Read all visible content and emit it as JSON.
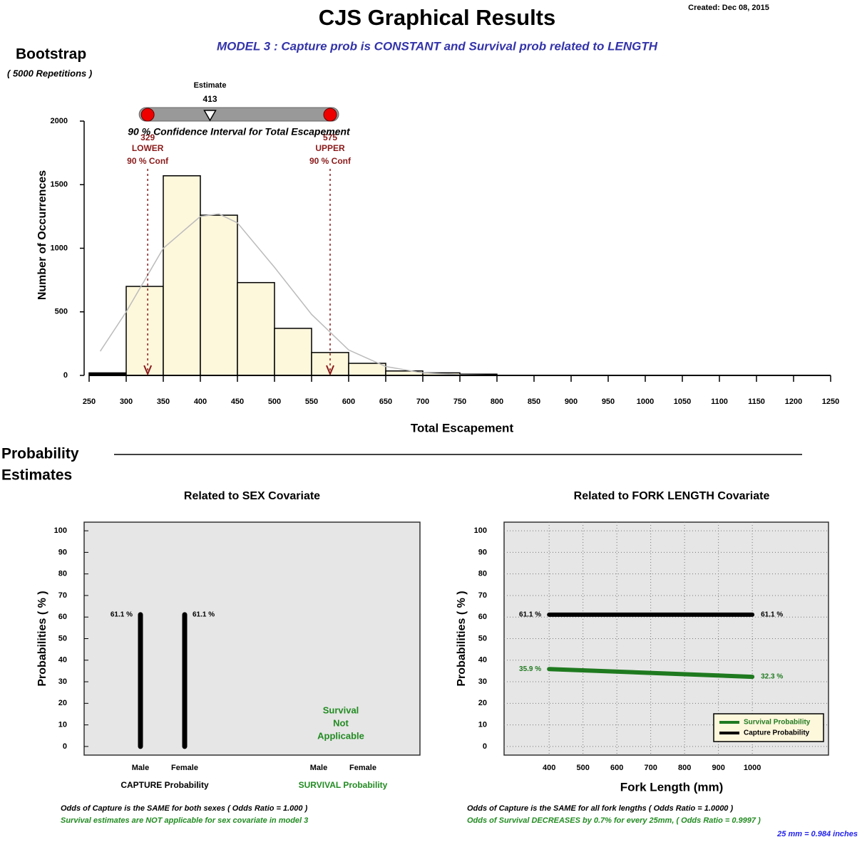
{
  "header": {
    "title": "CJS Graphical Results",
    "created": "Created:  Dec 08, 2015",
    "model": "MODEL  3 :  Capture prob is CONSTANT  and  Survival prob related to LENGTH"
  },
  "bootstrap": {
    "title": "Bootstrap",
    "repetitions": "( 5000  Repetitions )"
  },
  "section": {
    "line1": "Probability",
    "line2": "Estimates"
  },
  "chart_data": [
    {
      "type": "histogram",
      "xlabel": "Total Escapement",
      "ylabel": "Number of Occurrences",
      "bins": [
        250,
        300,
        350,
        400,
        450,
        500,
        550,
        600,
        650,
        700,
        750,
        800,
        850,
        900,
        950,
        1000,
        1050,
        1100,
        1150,
        1200,
        1250
      ],
      "counts": [
        20,
        700,
        1570,
        1260,
        730,
        370,
        180,
        95,
        35,
        20,
        10,
        0,
        0,
        0,
        0,
        0,
        0,
        0,
        0,
        0
      ],
      "color": "#fdf7dc",
      "fit_curve": {
        "x": [
          265,
          300,
          350,
          400,
          425,
          450,
          500,
          550,
          600,
          650,
          700,
          750,
          800,
          1250
        ],
        "values": [
          190,
          500,
          1000,
          1250,
          1270,
          1200,
          850,
          480,
          200,
          70,
          20,
          5,
          0,
          0
        ],
        "color": "#bbbbbb"
      },
      "xlim": [
        250,
        1250
      ],
      "xticks": [
        250,
        300,
        350,
        400,
        450,
        500,
        550,
        600,
        650,
        700,
        750,
        800,
        850,
        900,
        950,
        1000,
        1050,
        1100,
        1150,
        1200,
        1250
      ],
      "ylim": [
        0,
        2000
      ],
      "yticks": [
        0,
        500,
        1000,
        1500,
        2000
      ],
      "interval": {
        "caption": "90 % Confidence Interval for Total Escapement",
        "estimate_label": "Estimate",
        "estimate": 413,
        "lower": 329,
        "lower_label": "LOWER",
        "lower_conf": "90 % Conf",
        "upper": 575,
        "upper_label": "UPPER",
        "upper_conf": "90 % Conf",
        "color": "#8b1a1a"
      }
    },
    {
      "type": "bar",
      "title": "Related to SEX Covariate",
      "ylabel": "Probabilities ( % )",
      "ylim": [
        -4,
        104
      ],
      "yticks": [
        0,
        10,
        20,
        30,
        40,
        50,
        60,
        70,
        80,
        90,
        100
      ],
      "groups": [
        {
          "label": "CAPTURE Probability",
          "categories": [
            "Male",
            "Female"
          ],
          "values": [
            61.1,
            61.1
          ],
          "value_labels": [
            "61.1 %",
            "61.1 %"
          ],
          "color": "#000000"
        },
        {
          "label": "SURVIVAL Probability",
          "categories": [
            "Male",
            "Female"
          ],
          "values": [
            null,
            null
          ],
          "note": [
            "Survival",
            "Not",
            "Applicable"
          ],
          "color": "#228b22"
        }
      ]
    },
    {
      "type": "line",
      "title": "Related to FORK LENGTH Covariate",
      "xlabel": "Fork Length (mm)",
      "ylabel": "Probabilities ( % )",
      "x": [
        400,
        1000
      ],
      "xlim": [
        267,
        1105
      ],
      "xticks": [
        400,
        500,
        600,
        700,
        800,
        900,
        1000
      ],
      "ylim": [
        -4,
        104
      ],
      "yticks": [
        0,
        10,
        20,
        30,
        40,
        50,
        60,
        70,
        80,
        90,
        100
      ],
      "grid": true,
      "legend": "lower right",
      "series": [
        {
          "name": "Survival Probability",
          "color": "#1f7a1f",
          "values": [
            35.9,
            32.3
          ],
          "value_labels": [
            "35.9 %",
            "32.3 %"
          ]
        },
        {
          "name": "Capture Probability",
          "color": "#000000",
          "values": [
            61.1,
            61.1
          ],
          "value_labels": [
            "61.1 %",
            "61.1 %"
          ]
        }
      ]
    }
  ],
  "notes": {
    "sex": [
      "Odds of Capture is the SAME for both sexes ( Odds Ratio = 1.000 )",
      "Survival estimates are NOT applicable for sex covariate in model 3"
    ],
    "length": [
      "Odds of Capture is the SAME for all fork lengths ( Odds Ratio = 1.0000 )",
      "Odds of Survival DECREASES by 0.7% for every 25mm, ( Odds Ratio = 0.9997 )",
      "25 mm = 0.984 inches"
    ]
  }
}
